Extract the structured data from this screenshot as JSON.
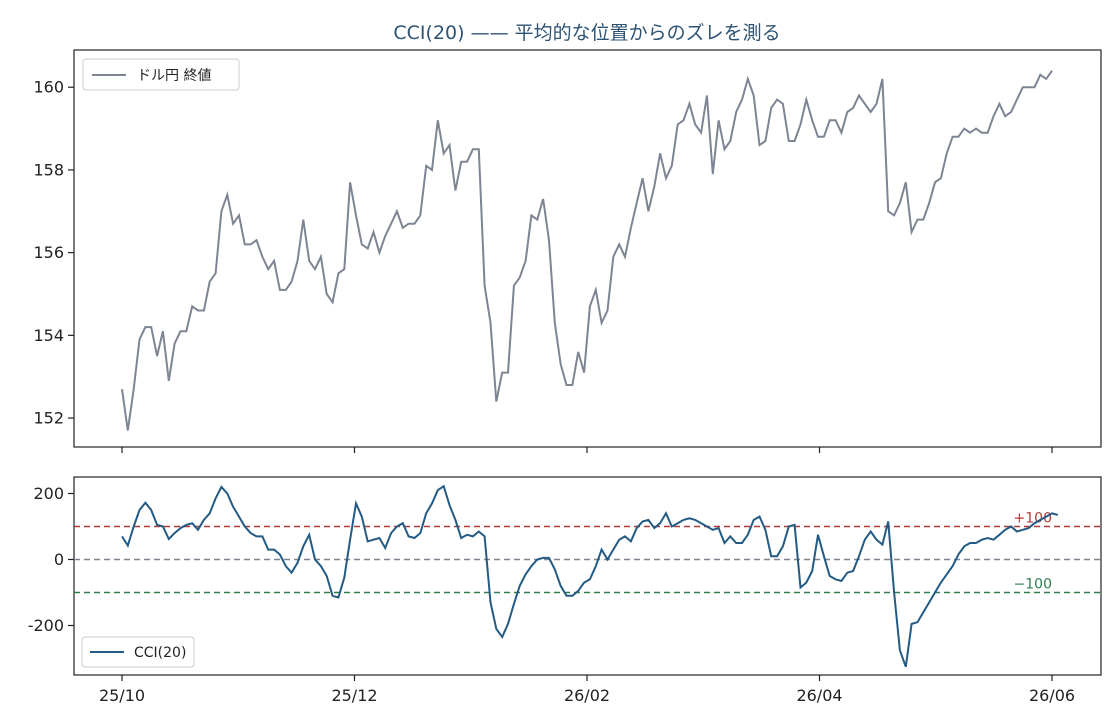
{
  "title": "CCI(20) —— 平均的な位置からのズレを測る",
  "chart_data": [
    {
      "type": "line",
      "panel": "price",
      "legend": "top-left",
      "grid": false,
      "ylim": [
        151.3,
        160.9
      ],
      "yticks": [
        152,
        154,
        156,
        158,
        160
      ],
      "series": [
        {
          "name": "ドル円 終値",
          "color": "#7d8593",
          "values": [
            152.7,
            151.7,
            152.7,
            153.9,
            154.2,
            154.2,
            153.5,
            154.1,
            152.9,
            153.8,
            154.1,
            154.1,
            154.7,
            154.6,
            154.6,
            155.3,
            155.5,
            157.0,
            157.4,
            156.7,
            156.9,
            156.2,
            156.2,
            156.3,
            155.9,
            155.6,
            155.8,
            155.1,
            155.1,
            155.3,
            155.8,
            156.8,
            155.8,
            155.6,
            155.9,
            155.0,
            154.8,
            155.5,
            155.6,
            157.7,
            156.9,
            156.2,
            156.1,
            156.5,
            156.0,
            156.4,
            156.7,
            157.0,
            156.6,
            156.7,
            156.7,
            156.9,
            158.1,
            158.0,
            159.2,
            158.4,
            158.6,
            157.5,
            158.2,
            158.2,
            158.5,
            158.5,
            155.2,
            154.3,
            152.4,
            153.1,
            153.1,
            155.2,
            155.4,
            155.8,
            156.9,
            156.8,
            157.3,
            156.3,
            154.3,
            153.3,
            152.8,
            152.8,
            153.6,
            153.1,
            154.7,
            155.1,
            154.3,
            154.6,
            155.9,
            156.2,
            155.9,
            156.6,
            157.2,
            157.8,
            157.0,
            157.6,
            158.4,
            157.8,
            158.1,
            159.1,
            159.2,
            159.6,
            159.1,
            158.9,
            159.8,
            157.9,
            159.2,
            158.5,
            158.7,
            159.4,
            159.7,
            160.2,
            159.8,
            158.6,
            158.7,
            159.5,
            159.7,
            159.6,
            158.7,
            158.7,
            159.1,
            159.7,
            159.2,
            158.8,
            158.8,
            159.2,
            159.2,
            158.9,
            159.4,
            159.5,
            159.8,
            159.6,
            159.4,
            159.6,
            160.2,
            157.0,
            156.9,
            157.2,
            157.7,
            156.5,
            156.8,
            156.8,
            157.2,
            157.7,
            157.8,
            158.4,
            158.8,
            158.8,
            159.0,
            158.9,
            159.0,
            158.9,
            158.9,
            159.3,
            159.6,
            159.3,
            159.4,
            159.7,
            160.0,
            160.0,
            160.0,
            160.3,
            160.2,
            160.4
          ]
        }
      ]
    },
    {
      "type": "line",
      "panel": "cci",
      "legend": "bottom-left",
      "grid": false,
      "ylim": [
        -350,
        250
      ],
      "yticks": [
        200,
        0,
        -200
      ],
      "xticks": [
        "25/10",
        "25/12",
        "26/02",
        "26/04",
        "26/06"
      ],
      "reference_lines": [
        {
          "value": 100,
          "label": "+100",
          "color": "#b03a3a"
        },
        {
          "value": 0,
          "label": "",
          "color": "#7d8593"
        },
        {
          "value": -100,
          "label": "−100",
          "color": "#2e7d4f"
        }
      ],
      "series": [
        {
          "name": "CCI(20)",
          "color": "#235b84",
          "values": [
            70,
            42,
            100,
            150,
            172,
            150,
            105,
            100,
            62,
            80,
            95,
            105,
            110,
            90,
            120,
            140,
            185,
            220,
            200,
            160,
            130,
            100,
            80,
            70,
            70,
            30,
            30,
            15,
            -20,
            -40,
            -10,
            40,
            75,
            0,
            -20,
            -50,
            -110,
            -115,
            -55,
            60,
            170,
            130,
            55,
            60,
            65,
            35,
            80,
            100,
            110,
            70,
            65,
            80,
            140,
            170,
            210,
            222,
            165,
            120,
            65,
            75,
            70,
            85,
            70,
            -130,
            -210,
            -235,
            -195,
            -135,
            -80,
            -45,
            -20,
            0,
            5,
            5,
            -30,
            -80,
            -110,
            -110,
            -95,
            -70,
            -60,
            -20,
            30,
            0,
            30,
            60,
            70,
            55,
            95,
            115,
            120,
            95,
            110,
            140,
            100,
            110,
            120,
            125,
            120,
            110,
            100,
            90,
            95,
            50,
            70,
            50,
            50,
            75,
            120,
            130,
            90,
            10,
            10,
            40,
            100,
            105,
            -85,
            -70,
            -35,
            75,
            10,
            -50,
            -60,
            -65,
            -40,
            -35,
            10,
            60,
            85,
            60,
            45,
            115,
            -100,
            -275,
            -325,
            -195,
            -190,
            -160,
            -130,
            -100,
            -70,
            -45,
            -20,
            15,
            40,
            50,
            50,
            60,
            65,
            60,
            75,
            90,
            100,
            85,
            90,
            95,
            110,
            120,
            130,
            140,
            135
          ]
        }
      ]
    }
  ]
}
